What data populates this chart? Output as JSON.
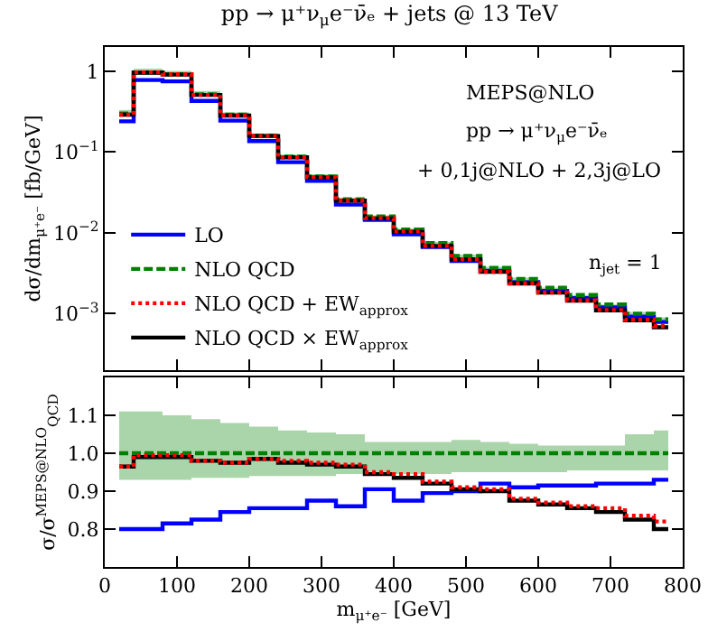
{
  "chart_data": [
    {
      "type": "step",
      "title": "pp → μ⁺ν$_{μ}$e⁻ν̄ₑ + jets @ 13 TeV",
      "ylabel": "dσ/dm$_{μ⁺e⁻}$ [fb/GeV]",
      "x": [
        20,
        60,
        100,
        140,
        180,
        220,
        260,
        300,
        340,
        380,
        420,
        460,
        500,
        540,
        580,
        620,
        660,
        700,
        740,
        780
      ],
      "xlim": [
        0,
        800
      ],
      "xticks": [
        0,
        100,
        200,
        300,
        400,
        500,
        600,
        700,
        800
      ],
      "tick_labels": "y",
      "log": true,
      "ylim": [
        0.0002,
        2
      ],
      "yticks": [
        {
          "value": 1,
          "label": "1"
        },
        {
          "value": 0.1,
          "label": "10$^{−1}$"
        },
        {
          "value": 0.01,
          "label": "10$^{−2}$"
        },
        {
          "value": 0.001,
          "label": "10$^{−3}$"
        }
      ],
      "legend": "bottom left",
      "annotations": [
        "MEPS@NLO",
        "pp → μ⁺ν$_{μ}$e⁻ν̄ₑ",
        "+ 0,1j@NLO + 2,3j@LO",
        "n$_{jet}$ = 1"
      ],
      "series": [
        {
          "name": "LO",
          "color": "#0000ff",
          "line_style": "solid",
          "values": [
            0.24,
            0.78,
            0.75,
            0.43,
            0.245,
            0.137,
            0.075,
            0.044,
            0.0224,
            0.0145,
            0.0096,
            0.0067,
            0.0045,
            0.0034,
            0.00246,
            0.00192,
            0.00156,
            0.0012,
            0.00092,
            0.00079
          ]
        },
        {
          "name": "NLO QCD",
          "color": "#008000",
          "line_style": "dashed",
          "values": [
            0.3,
            0.97,
            0.92,
            0.52,
            0.29,
            0.16,
            0.088,
            0.05,
            0.026,
            0.016,
            0.011,
            0.0075,
            0.0052,
            0.0037,
            0.0027,
            0.0021,
            0.0017,
            0.0013,
            0.001,
            0.00085
          ],
          "lower": [
            0.28,
            0.9,
            0.86,
            0.49,
            0.27,
            0.15,
            0.083,
            0.047,
            0.0246,
            0.0151,
            0.0104,
            0.0071,
            0.0049,
            0.0035,
            0.0026,
            0.002,
            0.0016,
            0.00124,
            0.00096,
            0.00081
          ],
          "upper": [
            0.333,
            1.08,
            1.01,
            0.57,
            0.31,
            0.17,
            0.093,
            0.053,
            0.027,
            0.0165,
            0.0113,
            0.0077,
            0.0054,
            0.0038,
            0.0028,
            0.0021,
            0.0017,
            0.0013,
            0.00105,
            0.0009
          ]
        },
        {
          "name": "NLO QCD + EW$_{approx}$",
          "color": "#ff0000",
          "line_style": "dotted",
          "values": [
            0.29,
            0.97,
            0.92,
            0.51,
            0.283,
            0.158,
            0.086,
            0.049,
            0.0252,
            0.0152,
            0.0104,
            0.0069,
            0.0047,
            0.0033,
            0.00238,
            0.00183,
            0.00146,
            0.00111,
            0.00084,
            0.0007
          ]
        },
        {
          "name": "NLO QCD × EW$_{approx}$",
          "color": "#000000",
          "line_style": "solid",
          "values": [
            0.29,
            0.96,
            0.91,
            0.51,
            0.283,
            0.158,
            0.086,
            0.0485,
            0.0251,
            0.0151,
            0.0103,
            0.0069,
            0.0047,
            0.0033,
            0.00236,
            0.00182,
            0.00145,
            0.0011,
            0.00083,
            0.00068
          ]
        }
      ]
    },
    {
      "type": "step",
      "xlabel": "m$_{μ⁺e⁻}$ [GeV]",
      "ylabel": "σ/σ$^{MEPS@NLO}$$_{QCD}$",
      "x": [
        20,
        60,
        100,
        140,
        180,
        220,
        260,
        300,
        340,
        380,
        420,
        460,
        500,
        540,
        580,
        620,
        660,
        700,
        740,
        780
      ],
      "xlim": [
        0,
        800
      ],
      "xticks": [
        0,
        100,
        200,
        300,
        400,
        500,
        600,
        700,
        800
      ],
      "ylim": [
        0.7,
        1.2
      ],
      "yticks": [
        0.8,
        0.9,
        {
          "value": 1,
          "label": "1.0"
        },
        1.1
      ],
      "series": [
        {
          "color": "#0000ff",
          "line_style": "solid",
          "values": [
            0.8,
            0.8,
            0.815,
            0.825,
            0.845,
            0.855,
            0.855,
            0.875,
            0.86,
            0.905,
            0.875,
            0.895,
            0.9,
            0.92,
            0.91,
            0.915,
            0.915,
            0.92,
            0.92,
            0.93
          ]
        },
        {
          "color": "#008000",
          "line_style": "dashed",
          "values": [
            1,
            1,
            1,
            1,
            1,
            1,
            1,
            1,
            1,
            1,
            1,
            1,
            1,
            1,
            1,
            1,
            1,
            1,
            1,
            1
          ],
          "lower": [
            0.93,
            0.93,
            0.93,
            0.935,
            0.935,
            0.94,
            0.94,
            0.94,
            0.945,
            0.945,
            0.945,
            0.945,
            0.95,
            0.95,
            0.95,
            0.95,
            0.955,
            0.955,
            0.955,
            0.955
          ],
          "upper": [
            1.11,
            1.11,
            1.1,
            1.09,
            1.08,
            1.07,
            1.06,
            1.055,
            1.05,
            1.03,
            1.03,
            1.03,
            1.035,
            1.03,
            1.025,
            1.02,
            1.02,
            1.02,
            1.05,
            1.06
          ]
        },
        {
          "color": "#ff0000",
          "line_style": "dotted",
          "values": [
            0.965,
            0.995,
            0.995,
            0.98,
            0.975,
            0.985,
            0.98,
            0.975,
            0.97,
            0.95,
            0.945,
            0.925,
            0.91,
            0.905,
            0.88,
            0.87,
            0.86,
            0.855,
            0.835,
            0.82
          ]
        },
        {
          "color": "#000000",
          "line_style": "solid",
          "values": [
            0.965,
            0.99,
            0.99,
            0.98,
            0.975,
            0.985,
            0.975,
            0.97,
            0.965,
            0.945,
            0.935,
            0.92,
            0.905,
            0.9,
            0.875,
            0.865,
            0.855,
            0.845,
            0.825,
            0.8
          ]
        }
      ]
    }
  ]
}
